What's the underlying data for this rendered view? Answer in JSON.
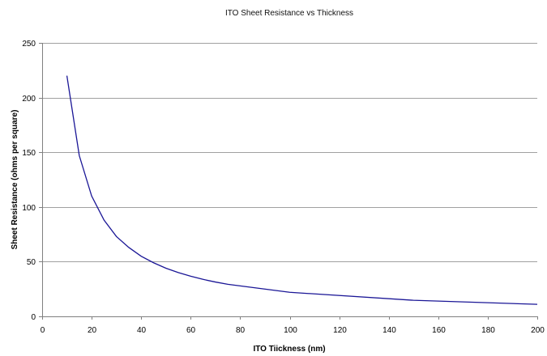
{
  "chart_data": {
    "type": "line",
    "title": "ITO Sheet Resistance vs Thickness",
    "xlabel": "ITO Tiickness (nm)",
    "ylabel": "Sheet Resistance (ohms per square)",
    "xlim": [
      0,
      200
    ],
    "ylim": [
      0,
      250
    ],
    "xticks": [
      0,
      20,
      40,
      60,
      80,
      100,
      120,
      140,
      160,
      180,
      200
    ],
    "yticks": [
      0,
      50,
      100,
      150,
      200,
      250
    ],
    "grid": "horizontal",
    "legend": "none",
    "colors": {
      "line": "#1a1696",
      "grid": "#a0a0a0",
      "axis": "#808080"
    },
    "series": [
      {
        "x": [
          10,
          15,
          20,
          25,
          30,
          35,
          40,
          45,
          50,
          55,
          60,
          65,
          70,
          75,
          100,
          150,
          200
        ],
        "y": [
          220,
          147,
          110,
          88,
          73,
          63,
          55,
          49,
          44,
          40,
          36.7,
          33.8,
          31.4,
          29.3,
          22,
          14.7,
          11
        ]
      }
    ]
  }
}
